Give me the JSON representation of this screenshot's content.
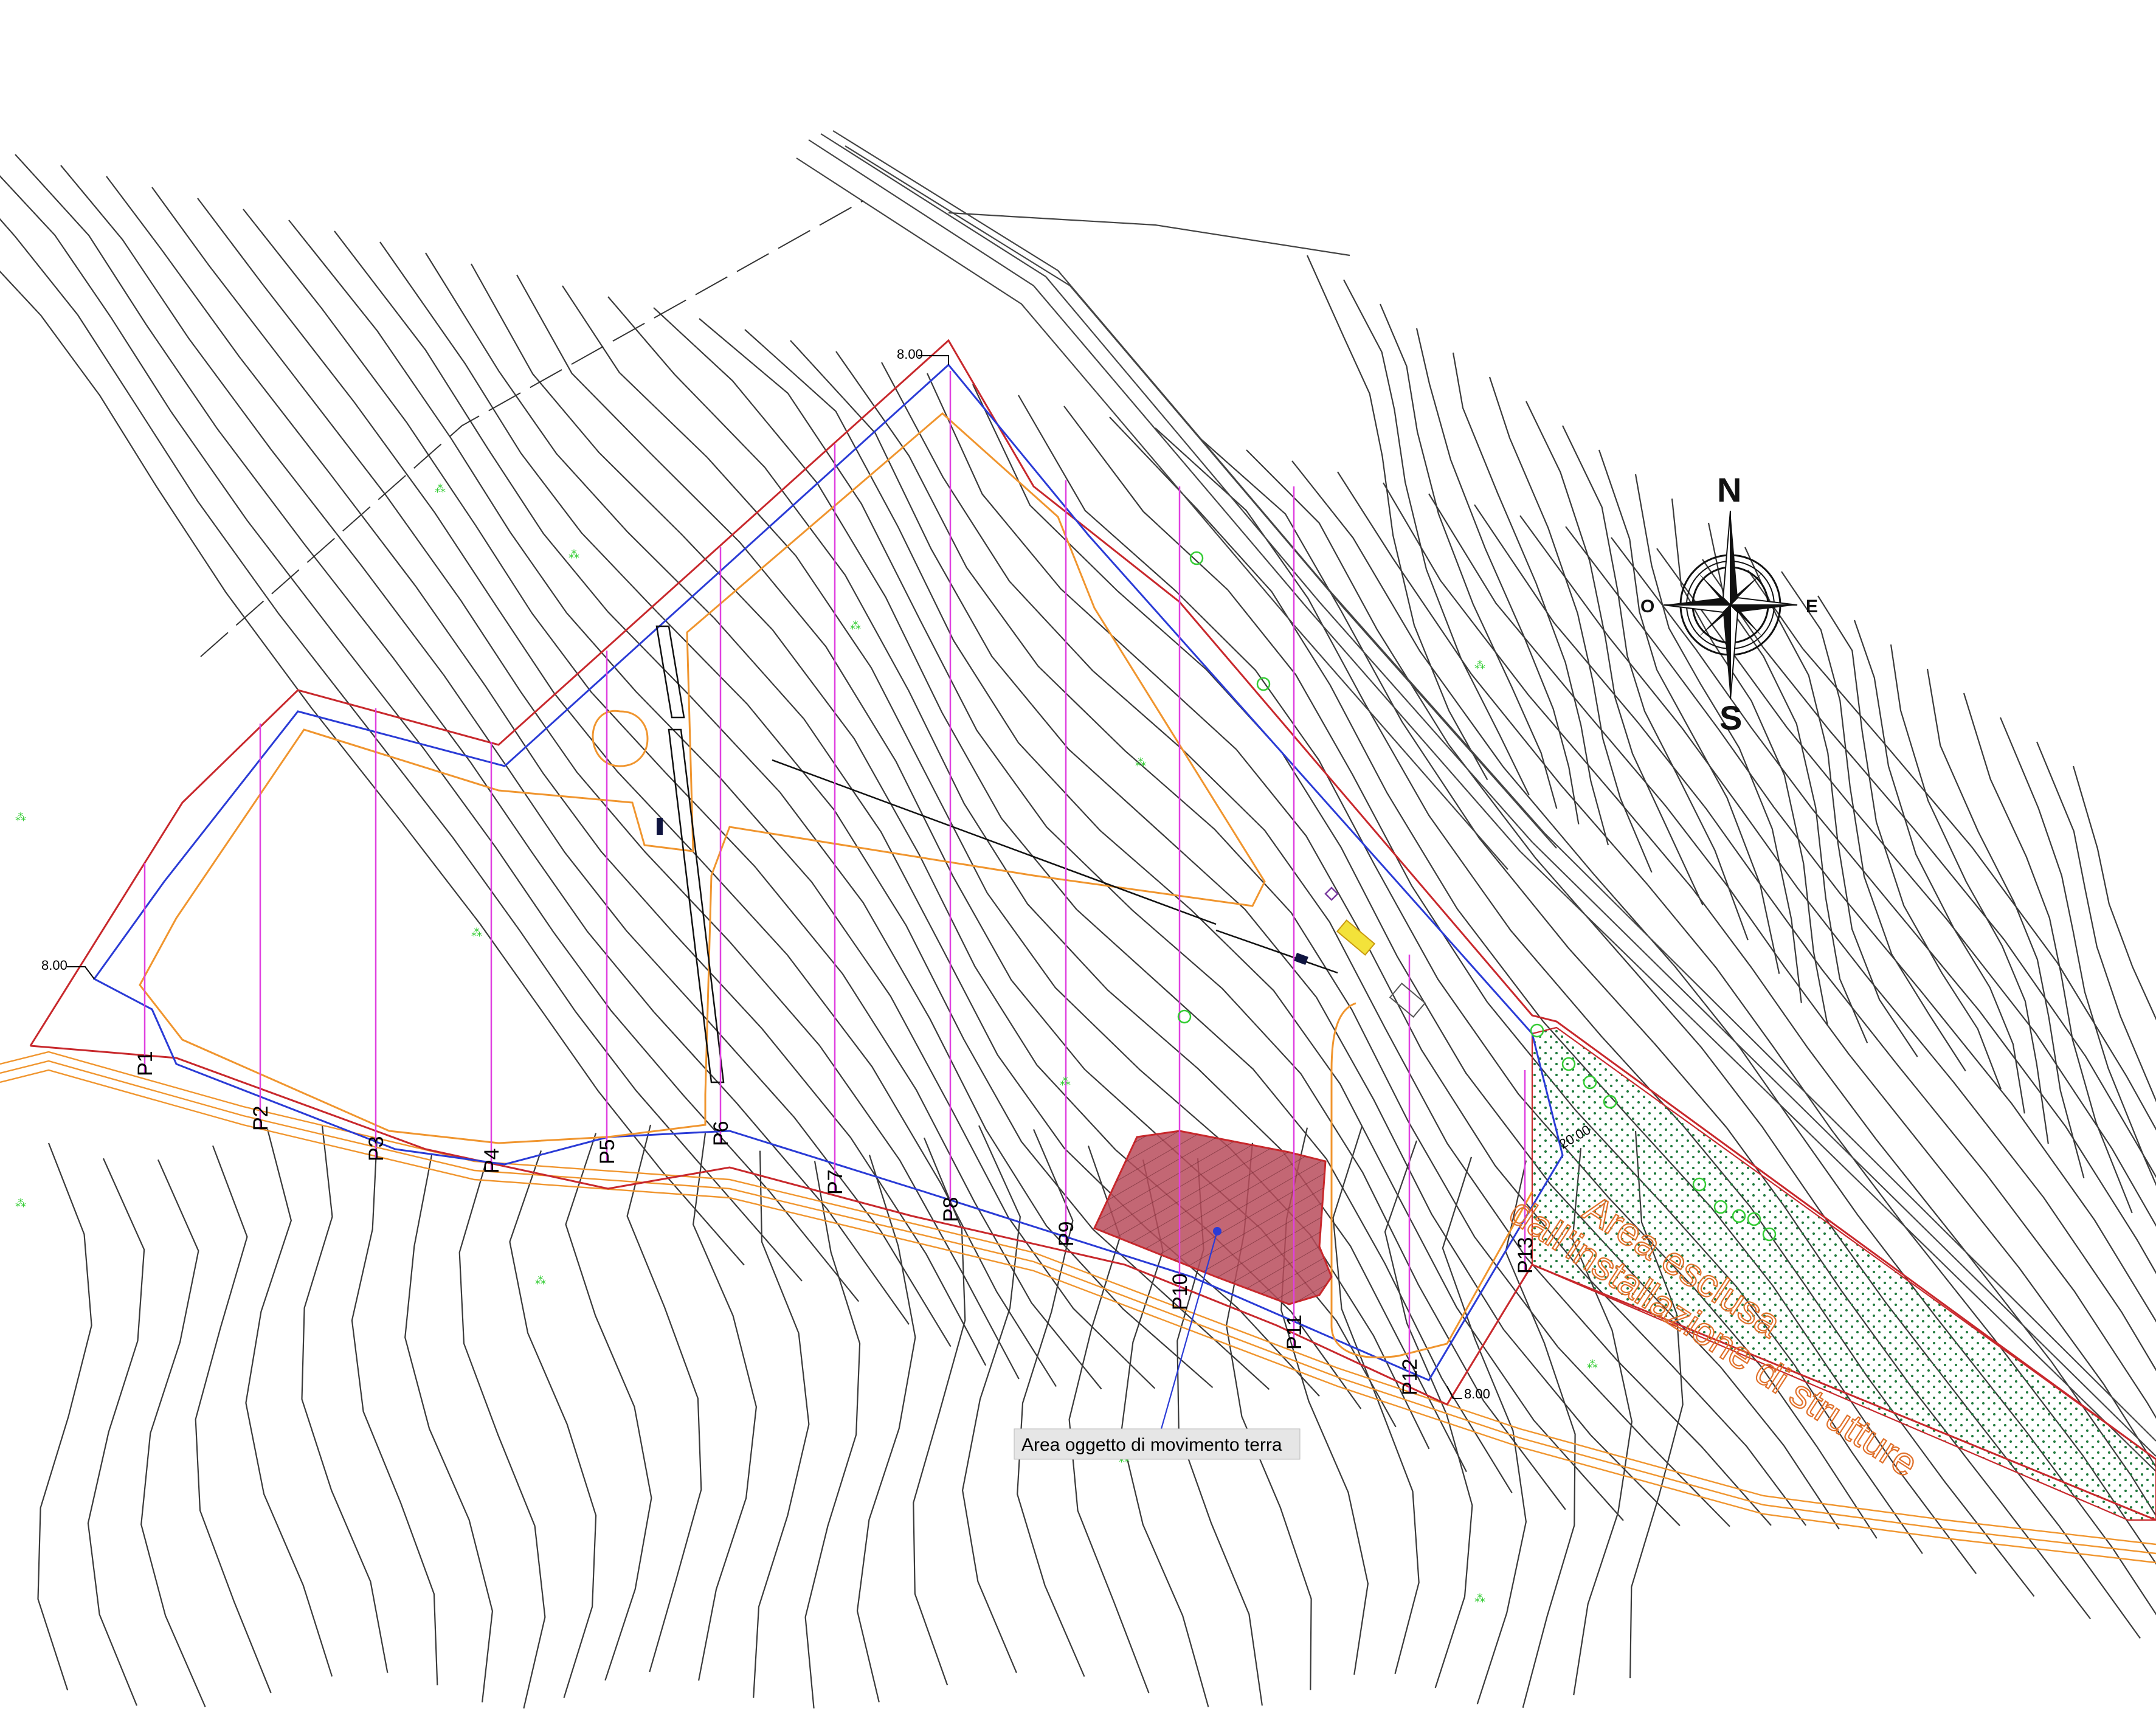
{
  "sections": [
    "P1",
    "P2",
    "P3",
    "P4",
    "P5",
    "P6",
    "P7",
    "P8",
    "P9",
    "P10",
    "P11",
    "P12",
    "P13"
  ],
  "dimensions": {
    "nw_peak": "8.00",
    "west_corner": "8.00",
    "south_east": "8.00",
    "east_band": "20.00"
  },
  "compass": {
    "north": "N",
    "south": "S",
    "east": "E",
    "west": "O"
  },
  "excluded_area": {
    "line1": "Area esclusa",
    "line2": "dall'installazione di strutture"
  },
  "callout": {
    "label": "Area oggetto di movimento terra"
  },
  "colors": {
    "boundary_red": "#c8282c",
    "fence_blue": "#2a3bd6",
    "road_orange": "#f0952e",
    "section_magenta": "#e040e0",
    "earthwork_fill": "#b84c5c",
    "excluded_hatch": "#1e7a3c",
    "contour": "#3a3a3a",
    "vegetation": "#33cc33"
  }
}
